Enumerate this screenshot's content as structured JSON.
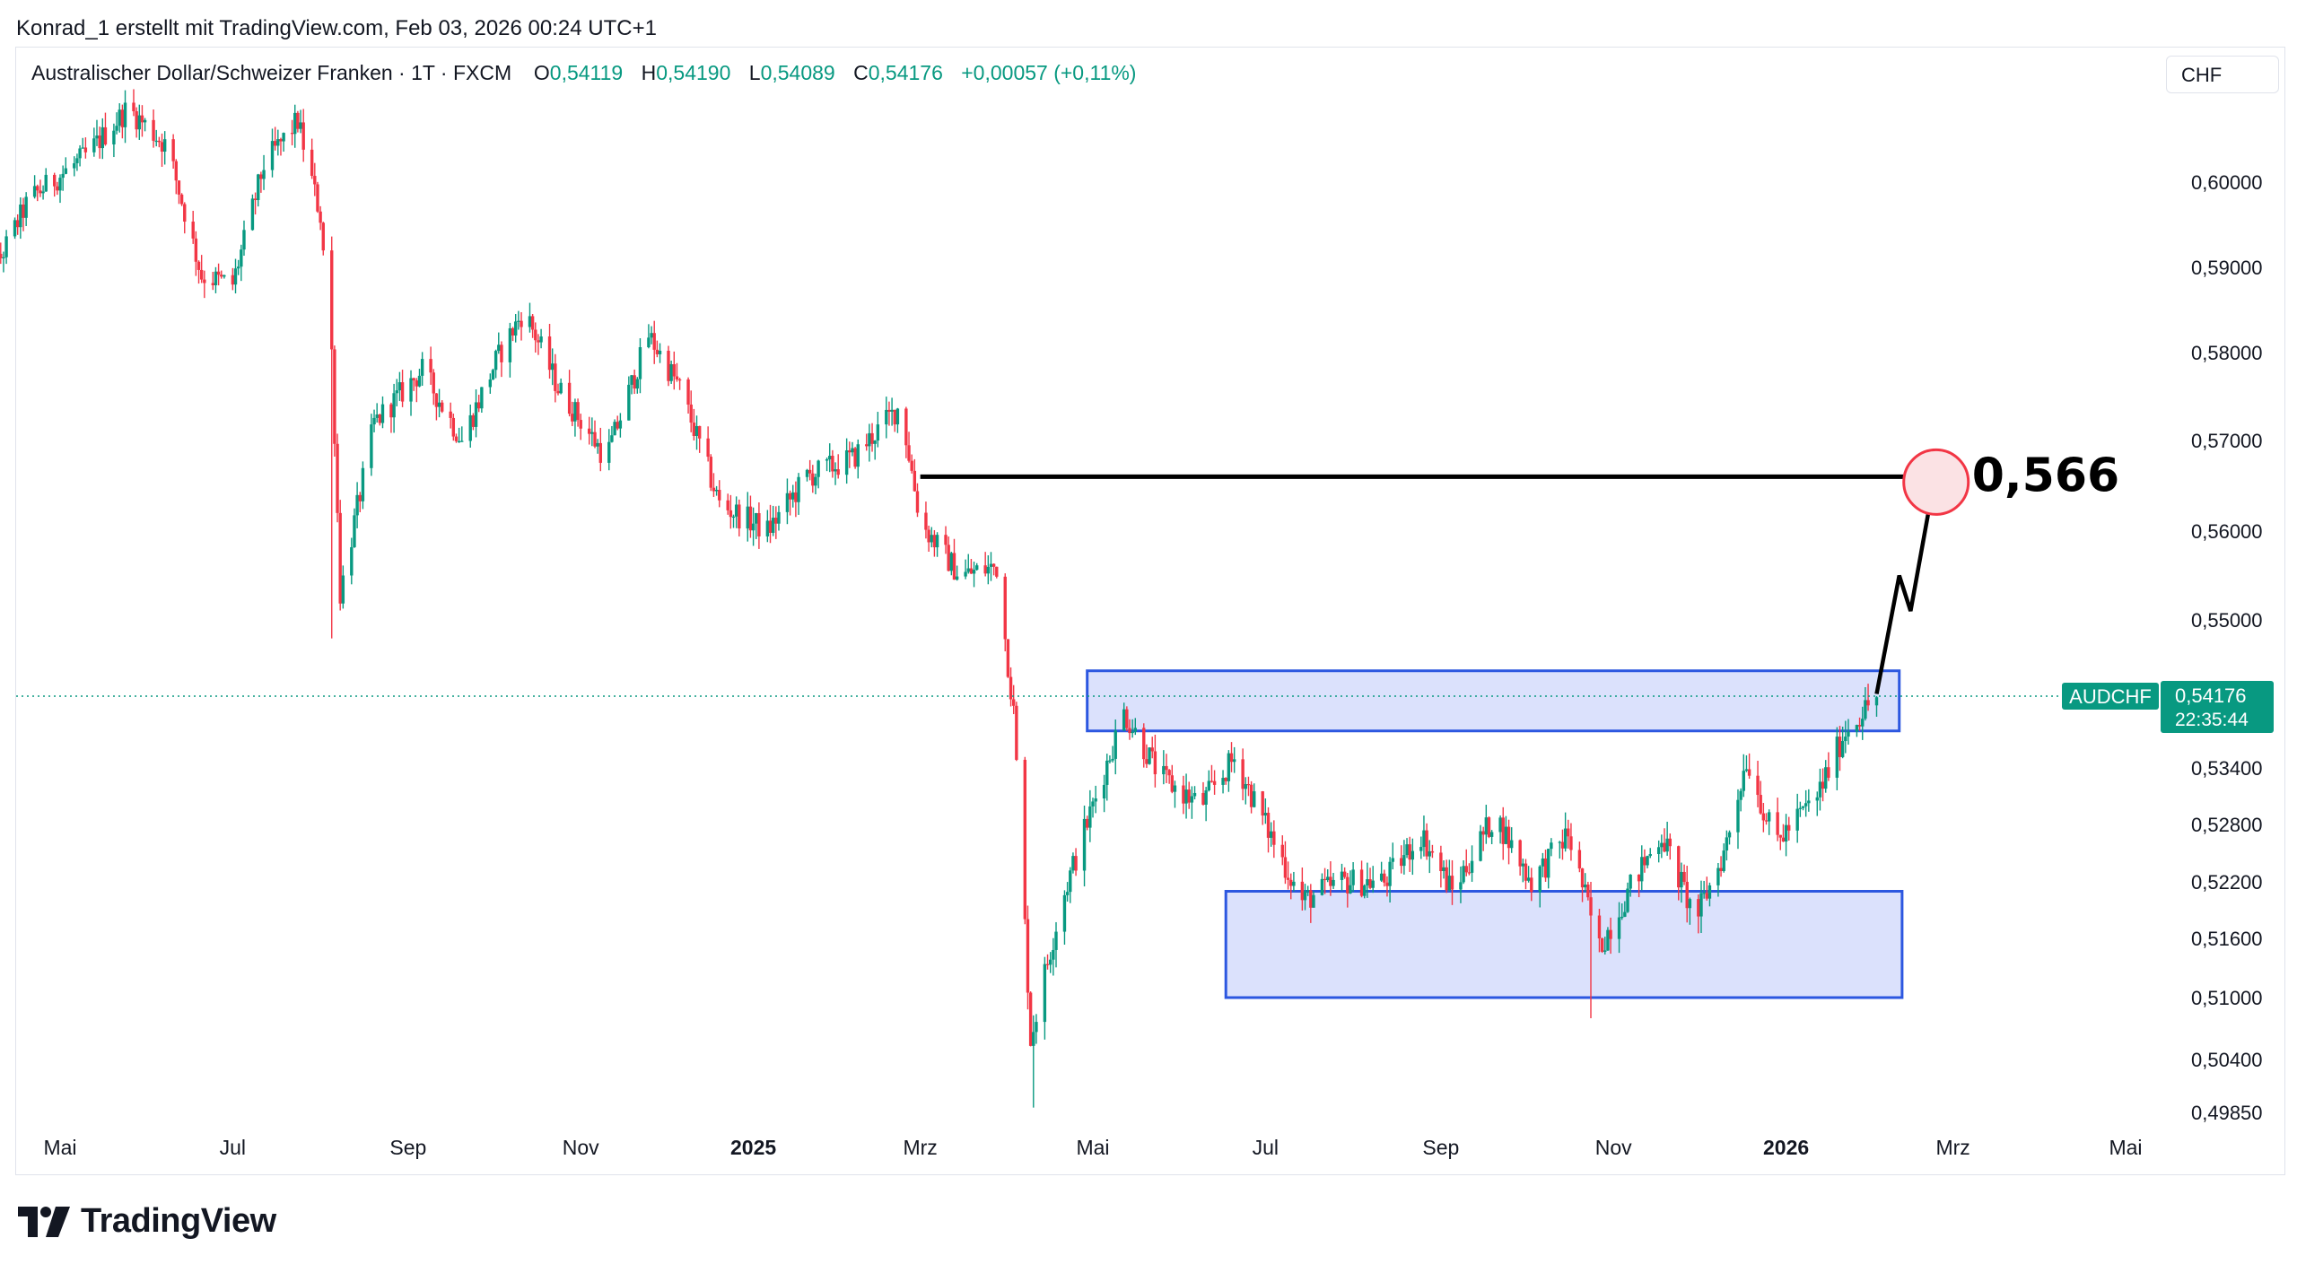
{
  "header": {
    "credit": "Konrad_1 erstellt mit TradingView.com, Feb 03, 2026 00:24 UTC+1"
  },
  "legend": {
    "symbol_desc": "Australischer Dollar/Schweizer Franken · 1T · FXCM",
    "o_label": "O",
    "o_value": "0,54119",
    "h_label": "H",
    "h_value": "0,54190",
    "l_label": "L",
    "l_value": "0,54089",
    "c_label": "C",
    "c_value": "0,54176",
    "change": "+0,00057 (+0,11%)"
  },
  "currency_button": "CHF",
  "footer": {
    "brand": "TradingView"
  },
  "colors": {
    "up": "#089981",
    "down": "#f23645",
    "zone_fill": "#d5dcfc",
    "zone_stroke": "#2c57e0",
    "target": "#f23645"
  },
  "chart_data": {
    "type": "candlestick",
    "symbol": "AUDCHF",
    "y_ticks": [
      {
        "v": 0.6,
        "label": "0,60000"
      },
      {
        "v": 0.59,
        "label": "0,59000"
      },
      {
        "v": 0.58,
        "label": "0,58000"
      },
      {
        "v": 0.57,
        "label": "0,57000"
      },
      {
        "v": 0.56,
        "label": "0,56000"
      },
      {
        "v": 0.55,
        "label": "0,55000"
      },
      {
        "v": 0.534,
        "label": "0,53400"
      },
      {
        "v": 0.528,
        "label": "0,52800"
      },
      {
        "v": 0.522,
        "label": "0,52200"
      },
      {
        "v": 0.516,
        "label": "0,51600"
      },
      {
        "v": 0.51,
        "label": "0,51000"
      },
      {
        "v": 0.504,
        "label": "0,50400"
      },
      {
        "v": 0.4985,
        "label": "0,49850"
      }
    ],
    "x_ticks": [
      {
        "date": "2024-05-01",
        "label": "Mai",
        "bold": false
      },
      {
        "date": "2024-07-01",
        "label": "Jul",
        "bold": false
      },
      {
        "date": "2024-09-01",
        "label": "Sep",
        "bold": false
      },
      {
        "date": "2024-11-01",
        "label": "Nov",
        "bold": false
      },
      {
        "date": "2025-01-01",
        "label": "2025",
        "bold": true
      },
      {
        "date": "2025-03-01",
        "label": "Mrz",
        "bold": false
      },
      {
        "date": "2025-05-01",
        "label": "Mai",
        "bold": false
      },
      {
        "date": "2025-07-01",
        "label": "Jul",
        "bold": false
      },
      {
        "date": "2025-09-01",
        "label": "Sep",
        "bold": false
      },
      {
        "date": "2025-11-01",
        "label": "Nov",
        "bold": false
      },
      {
        "date": "2026-01-01",
        "label": "2026",
        "bold": true
      },
      {
        "date": "2026-03-01",
        "label": "Mrz",
        "bold": false
      },
      {
        "date": "2026-05-01",
        "label": "Mai",
        "bold": false
      }
    ],
    "price_path": [
      [
        "2024-04-01",
        0.585
      ],
      [
        "2024-04-20",
        0.598
      ],
      [
        "2024-05-10",
        0.603
      ],
      [
        "2024-05-25",
        0.6085
      ],
      [
        "2024-06-08",
        0.604
      ],
      [
        "2024-06-20",
        0.589
      ],
      [
        "2024-07-01",
        0.588
      ],
      [
        "2024-07-12",
        0.602
      ],
      [
        "2024-07-24",
        0.607
      ],
      [
        "2024-08-01",
        0.596
      ],
      [
        "2024-08-05",
        0.58
      ],
      [
        "2024-08-08",
        0.553
      ],
      [
        "2024-08-20",
        0.572
      ],
      [
        "2024-09-06",
        0.578
      ],
      [
        "2024-09-20",
        0.57
      ],
      [
        "2024-10-02",
        0.579
      ],
      [
        "2024-10-12",
        0.585
      ],
      [
        "2024-10-24",
        0.576
      ],
      [
        "2024-11-10",
        0.568
      ],
      [
        "2024-11-25",
        0.582
      ],
      [
        "2024-12-06",
        0.576
      ],
      [
        "2024-12-20",
        0.563
      ],
      [
        "2025-01-06",
        0.56
      ],
      [
        "2025-01-20",
        0.566
      ],
      [
        "2025-02-05",
        0.568
      ],
      [
        "2025-02-22",
        0.574
      ],
      [
        "2025-03-01",
        0.561
      ],
      [
        "2025-03-15",
        0.555
      ],
      [
        "2025-03-28",
        0.556
      ],
      [
        "2025-04-03",
        0.54
      ],
      [
        "2025-04-09",
        0.506
      ],
      [
        "2025-04-20",
        0.52
      ],
      [
        "2025-05-01",
        0.53
      ],
      [
        "2025-05-12",
        0.54
      ],
      [
        "2025-05-25",
        0.533
      ],
      [
        "2025-06-08",
        0.53
      ],
      [
        "2025-06-20",
        0.535
      ],
      [
        "2025-07-01",
        0.528
      ],
      [
        "2025-07-14",
        0.52
      ],
      [
        "2025-07-28",
        0.522
      ],
      [
        "2025-08-12",
        0.522
      ],
      [
        "2025-08-25",
        0.527
      ],
      [
        "2025-09-05",
        0.521
      ],
      [
        "2025-09-20",
        0.529
      ],
      [
        "2025-10-03",
        0.522
      ],
      [
        "2025-10-16",
        0.527
      ],
      [
        "2025-10-27",
        0.515
      ],
      [
        "2025-11-08",
        0.522
      ],
      [
        "2025-11-18",
        0.527
      ],
      [
        "2025-11-30",
        0.518
      ],
      [
        "2025-12-10",
        0.525
      ],
      [
        "2025-12-18",
        0.535
      ],
      [
        "2025-12-28",
        0.526
      ],
      [
        "2026-01-12",
        0.531
      ],
      [
        "2026-01-22",
        0.538
      ],
      [
        "2026-02-02",
        0.54176
      ]
    ],
    "last_price": {
      "symbol_label": "AUDCHF",
      "value": 0.54176,
      "label": "0,54176",
      "countdown": "22:35:44"
    },
    "zones": [
      {
        "name": "resistance-zone",
        "from_date": "2025-04-29",
        "to_date": "2026-02-10",
        "high": 0.5445,
        "low": 0.538
      },
      {
        "name": "support-zone",
        "from_date": "2025-06-17",
        "to_date": "2026-02-11",
        "high": 0.521,
        "low": 0.51
      }
    ],
    "level_line": {
      "value": 0.566,
      "from_date": "2025-03-01",
      "to_date": "2026-02-17"
    },
    "projection": [
      [
        "2026-02-02",
        0.542
      ],
      [
        "2026-02-10",
        0.555
      ],
      [
        "2026-02-14",
        0.551
      ],
      [
        "2026-02-22",
        0.565
      ]
    ],
    "target": {
      "date": "2026-02-23",
      "value": 0.566,
      "label": "0,566"
    }
  }
}
